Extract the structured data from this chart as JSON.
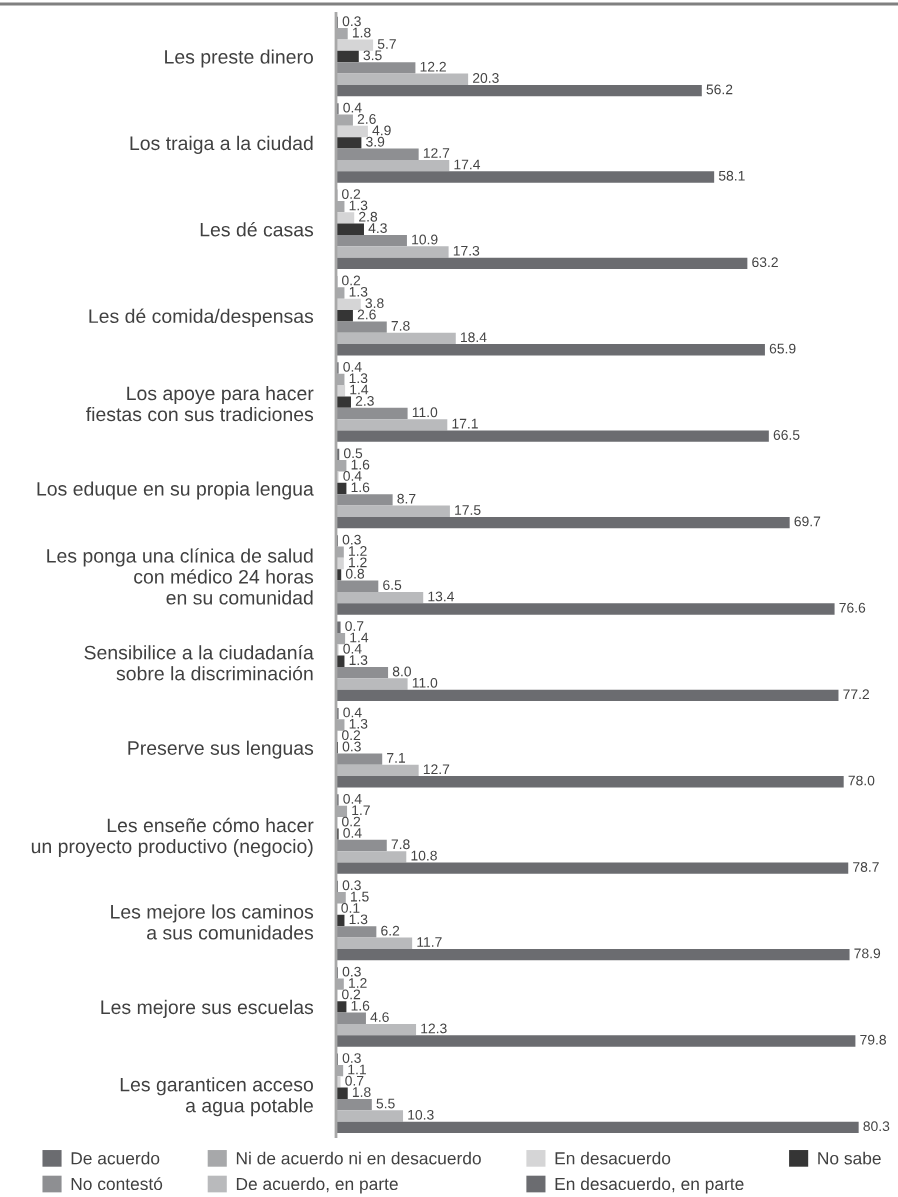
{
  "chart_data": {
    "type": "bar",
    "orientation": "horizontal",
    "categories": [
      "Les preste dinero",
      "Los traiga a la ciudad",
      "Les dé casas",
      "Les dé comida/despensas",
      "Los apoye para hacer\nfiestas con sus tradiciones",
      "Los eduque en su propia lengua",
      "Les ponga una clínica de salud\ncon médico 24 horas\nen su comunidad",
      "Sensibilice a la ciudadanía\nsobre la discriminación",
      "Preserve sus lenguas",
      "Les enseñe cómo hacer\nun proyecto productivo (negocio)",
      "Les mejore los caminos\na sus comunidades",
      "Les mejore sus escuelas",
      "Les garanticen acceso\na agua potable"
    ],
    "series": [
      {
        "name": "De acuerdo",
        "color": "#6b6c70",
        "values": [
          0.3,
          0.4,
          0.2,
          0.2,
          0.4,
          0.5,
          0.3,
          0.7,
          0.4,
          0.4,
          0.3,
          0.3,
          0.3
        ],
        "value_labels": [
          "0.3",
          "0.4",
          "0.2",
          "0.2",
          "0.4",
          "0.5",
          "0.3",
          "0.7",
          "0.4",
          "0.4",
          "0.3",
          "0.3",
          "0.3"
        ]
      },
      {
        "name": "Ni de acuerdo ni en desacuerdo",
        "color": "#a7a8aa",
        "values": [
          1.8,
          2.6,
          1.3,
          1.3,
          1.3,
          1.6,
          1.2,
          1.4,
          1.3,
          1.7,
          1.5,
          1.2,
          1.1
        ],
        "value_labels": [
          "1.8",
          "2.6",
          "1.3",
          "1.3",
          "1.3",
          "1.6",
          "1.2",
          "1.4",
          "1.3",
          "1.7",
          "1.5",
          "1.2",
          "1.1"
        ]
      },
      {
        "name": "En desacuerdo",
        "color": "#d5d5d6",
        "values": [
          5.7,
          4.9,
          2.8,
          3.8,
          1.4,
          0.4,
          1.2,
          0.4,
          0.2,
          0.2,
          0.1,
          0.2,
          0.7
        ],
        "value_labels": [
          "5.7",
          "4.9",
          "2.8",
          "3.8",
          "1.4",
          "0.4",
          "1.2",
          "0.4",
          "0.2",
          "0.2",
          "0.1",
          "0.2",
          "0.7"
        ]
      },
      {
        "name": "No sabe",
        "color": "#353535",
        "values": [
          3.5,
          3.9,
          4.3,
          2.6,
          2.3,
          1.6,
          0.8,
          1.3,
          0.3,
          0.4,
          1.3,
          1.6,
          1.8
        ],
        "value_labels": [
          "3.5",
          "3.9",
          "4.3",
          "2.6",
          "2.3",
          "1.6",
          "0.8",
          "1.3",
          "0.3",
          "0.4",
          "1.3",
          "1.6",
          "1.8"
        ]
      },
      {
        "name": "No contestó",
        "color": "#8e8f92",
        "values": [
          12.2,
          12.7,
          10.9,
          7.8,
          11,
          8.7,
          6.5,
          8,
          7.1,
          7.8,
          6.2,
          4.6,
          5.5
        ],
        "value_labels": [
          "12.2",
          "12.7",
          "10.9",
          "7.8",
          "11.0",
          "8.7",
          "6.5",
          "8.0",
          "7.1",
          "7.8",
          "6.2",
          "4.6",
          "5.5"
        ]
      },
      {
        "name": "De acuerdo, en parte",
        "color": "#b9babc",
        "values": [
          20.3,
          17.4,
          17.3,
          18.4,
          17.1,
          17.5,
          13.4,
          11,
          12.7,
          10.8,
          11.7,
          12.3,
          10.3
        ],
        "value_labels": [
          "20.3",
          "17.4",
          "17.3",
          "18.4",
          "17.1",
          "17.5",
          "13.4",
          "11.0",
          "12.7",
          "10.8",
          "11.7",
          "12.3",
          "10.3"
        ]
      },
      {
        "name": "En desacuerdo, en parte",
        "color": "#6b6c70",
        "values": [
          56.2,
          58.1,
          63.2,
          65.9,
          66.5,
          69.7,
          76.6,
          77.2,
          78,
          78.7,
          78.9,
          79.8,
          80.3
        ],
        "value_labels": [
          "56.2",
          "58.1",
          "63.2",
          "65.9",
          "66.5",
          "69.7",
          "76.6",
          "77.2",
          "78.0",
          "78.7",
          "78.9",
          "79.8",
          "80.3"
        ]
      }
    ],
    "tick_labels": "y",
    "legend": "bottom"
  }
}
